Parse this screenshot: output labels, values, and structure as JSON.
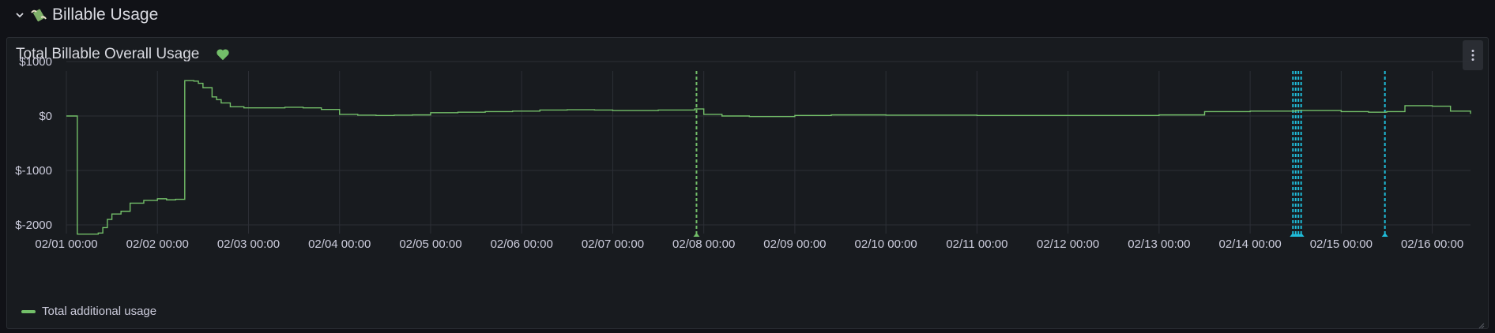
{
  "row": {
    "title": "Billable Usage",
    "icon": "money-wings-icon"
  },
  "panel": {
    "title": "Total Billable Overall Usage",
    "status_icon": "heart-icon",
    "status_color": "#73bf69",
    "menu_icon": "vertical-ellipsis-icon"
  },
  "colors": {
    "series": "#73bf69",
    "annotation_cyan": "#1fbcd9",
    "annotation_green": "#73bf69",
    "grid": "#2c2f36"
  },
  "chart_data": {
    "type": "line",
    "xlabel": "",
    "ylabel": "",
    "y_ticks": [
      "$1000",
      "$0",
      "$-1000",
      "$-2000"
    ],
    "y_tick_values": [
      1000,
      0,
      -1000,
      -2000
    ],
    "x_ticks": [
      "02/01 00:00",
      "02/02 00:00",
      "02/03 00:00",
      "02/04 00:00",
      "02/05 00:00",
      "02/06 00:00",
      "02/07 00:00",
      "02/08 00:00",
      "02/09 00:00",
      "02/10 00:00",
      "02/11 00:00",
      "02/12 00:00",
      "02/13 00:00",
      "02/14 00:00",
      "02/15 00:00",
      "02/16 00:00"
    ],
    "ylim": [
      -2500,
      1000
    ],
    "xlim_days": [
      0,
      15.42
    ],
    "grid": true,
    "legend_position": "bottom-left",
    "series": [
      {
        "name": "Total additional usage",
        "x_days": [
          0.0,
          0.11,
          0.12,
          0.3,
          0.35,
          0.4,
          0.45,
          0.5,
          0.6,
          0.7,
          0.85,
          1.0,
          1.1,
          1.2,
          1.3,
          1.4,
          1.45,
          1.5,
          1.6,
          1.65,
          1.7,
          1.8,
          1.95,
          2.2,
          2.4,
          2.6,
          2.8,
          3.0,
          3.2,
          3.4,
          3.6,
          3.8,
          4.0,
          4.3,
          4.6,
          4.9,
          5.2,
          5.5,
          5.8,
          6.0,
          6.5,
          6.9,
          7.0,
          7.2,
          7.5,
          7.8,
          8.0,
          8.4,
          9.0,
          9.5,
          10.0,
          10.5,
          11.0,
          11.5,
          12.0,
          12.5,
          13.0,
          13.5,
          14.0,
          14.3,
          14.5,
          14.7,
          15.0,
          15.2,
          15.42
        ],
        "values": [
          0,
          0,
          -2170,
          -2170,
          -2150,
          -2050,
          -1900,
          -1800,
          -1750,
          -1600,
          -1550,
          -1520,
          -1540,
          -1530,
          650,
          640,
          600,
          520,
          350,
          300,
          240,
          170,
          150,
          150,
          160,
          150,
          120,
          30,
          15,
          10,
          15,
          20,
          60,
          70,
          80,
          90,
          110,
          115,
          110,
          100,
          110,
          130,
          30,
          0,
          -10,
          -10,
          10,
          20,
          15,
          15,
          10,
          10,
          10,
          10,
          20,
          80,
          90,
          100,
          80,
          70,
          80,
          190,
          180,
          90,
          40
        ]
      }
    ],
    "annotations": [
      {
        "x_days": 6.92,
        "color": "green"
      },
      {
        "x_days": 13.47,
        "color": "cyan"
      },
      {
        "x_days": 13.5,
        "color": "cyan"
      },
      {
        "x_days": 13.53,
        "color": "cyan"
      },
      {
        "x_days": 13.56,
        "color": "cyan"
      },
      {
        "x_days": 14.48,
        "color": "cyan"
      }
    ]
  }
}
